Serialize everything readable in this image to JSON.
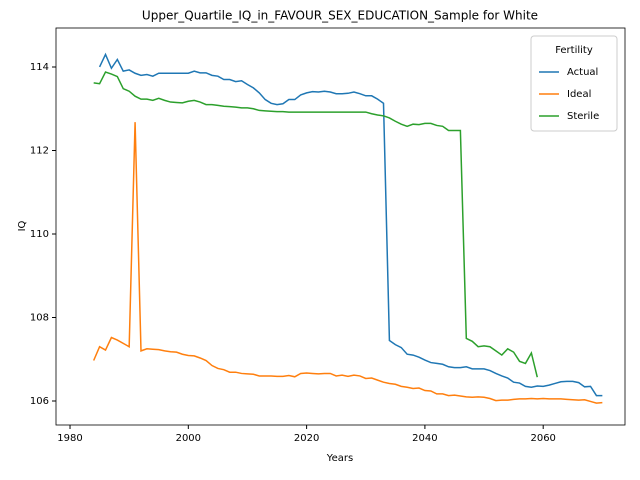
{
  "chart_data": {
    "type": "line",
    "title": "Upper_Quartile_IQ_in_FAVOUR_SEX_EDUCATION_Sample for White",
    "xlabel": "Years",
    "ylabel": "IQ",
    "legend_title": "Fertility",
    "legend": "upper right",
    "x": [
      1984,
      1985,
      1986,
      1987,
      1988,
      1989,
      1990,
      1991,
      1992,
      1993,
      1994,
      1995,
      1996,
      1997,
      1998,
      1999,
      2000,
      2001,
      2002,
      2003,
      2004,
      2005,
      2006,
      2007,
      2008,
      2009,
      2010,
      2011,
      2012,
      2013,
      2014,
      2015,
      2016,
      2017,
      2018,
      2019,
      2020,
      2021,
      2022,
      2023,
      2024,
      2025,
      2026,
      2027,
      2028,
      2029,
      2030,
      2031,
      2032,
      2033,
      2034,
      2035,
      2036,
      2037,
      2038,
      2039,
      2040,
      2041,
      2042,
      2043,
      2044,
      2045,
      2046,
      2047,
      2048,
      2049,
      2050,
      2051,
      2052,
      2053,
      2054,
      2055,
      2056,
      2057,
      2058,
      2059,
      2060,
      2061,
      2062,
      2063,
      2064,
      2065,
      2066,
      2067,
      2068,
      2069,
      2070
    ],
    "series": [
      {
        "name": "Actual",
        "color": "#1f77b4",
        "values": [
          null,
          114.0,
          114.3,
          113.97,
          114.18,
          113.9,
          113.93,
          113.85,
          113.8,
          113.82,
          113.78,
          113.85,
          113.85,
          113.85,
          113.85,
          113.85,
          113.85,
          113.9,
          113.86,
          113.86,
          113.8,
          113.78,
          113.7,
          113.7,
          113.65,
          113.67,
          113.58,
          113.5,
          113.38,
          113.22,
          113.13,
          113.1,
          113.12,
          113.22,
          113.22,
          113.33,
          113.38,
          113.41,
          113.4,
          113.42,
          113.4,
          113.36,
          113.36,
          113.37,
          113.4,
          113.36,
          113.31,
          113.31,
          113.23,
          113.13,
          107.45,
          107.35,
          107.28,
          107.12,
          107.1,
          107.05,
          106.98,
          106.92,
          106.9,
          106.88,
          106.82,
          106.8,
          106.8,
          106.82,
          106.77,
          106.77,
          106.77,
          106.73,
          106.66,
          106.6,
          106.55,
          106.45,
          106.43,
          106.35,
          106.33,
          106.36,
          106.35,
          106.38,
          106.42,
          106.46,
          106.47,
          106.47,
          106.44,
          106.34,
          106.35,
          106.13,
          106.13
        ]
      },
      {
        "name": "Ideal",
        "color": "#ff7f0e",
        "values": [
          106.97,
          107.3,
          107.22,
          107.52,
          107.46,
          107.38,
          107.3,
          112.68,
          107.2,
          107.25,
          107.24,
          107.23,
          107.2,
          107.18,
          107.17,
          107.12,
          107.09,
          107.08,
          107.03,
          106.97,
          106.85,
          106.78,
          106.75,
          106.69,
          106.69,
          106.66,
          106.65,
          106.64,
          106.6,
          106.6,
          106.6,
          106.59,
          106.59,
          106.61,
          106.58,
          106.66,
          106.67,
          106.66,
          106.65,
          106.66,
          106.66,
          106.6,
          106.62,
          106.59,
          106.62,
          106.6,
          106.54,
          106.55,
          106.5,
          106.45,
          106.42,
          106.4,
          106.35,
          106.33,
          106.3,
          106.31,
          106.25,
          106.24,
          106.17,
          106.17,
          106.13,
          106.14,
          106.12,
          106.1,
          106.09,
          106.1,
          106.09,
          106.06,
          106.01,
          106.02,
          106.02,
          106.04,
          106.05,
          106.05,
          106.06,
          106.05,
          106.06,
          106.05,
          106.05,
          106.05,
          106.04,
          106.03,
          106.02,
          106.03,
          105.99,
          105.95,
          105.96
        ]
      },
      {
        "name": "Sterile",
        "color": "#2ca02c",
        "values": [
          113.62,
          113.6,
          113.88,
          113.83,
          113.77,
          113.48,
          113.42,
          113.3,
          113.23,
          113.23,
          113.2,
          113.25,
          113.2,
          113.16,
          113.15,
          113.14,
          113.18,
          113.2,
          113.16,
          113.1,
          113.1,
          113.08,
          113.06,
          113.05,
          113.04,
          113.02,
          113.02,
          113.0,
          112.96,
          112.95,
          112.94,
          112.93,
          112.93,
          112.92,
          112.92,
          112.92,
          112.92,
          112.92,
          112.92,
          112.92,
          112.92,
          112.92,
          112.92,
          112.92,
          112.92,
          112.92,
          112.92,
          112.88,
          112.85,
          112.83,
          112.78,
          112.7,
          112.63,
          112.58,
          112.63,
          112.62,
          112.65,
          112.65,
          112.6,
          112.58,
          112.48,
          112.48,
          112.48,
          107.5,
          107.43,
          107.3,
          107.32,
          107.3,
          107.2,
          107.1,
          107.25,
          107.17,
          106.95,
          106.9,
          107.15,
          106.57,
          null,
          null,
          null,
          null,
          null,
          null,
          null,
          null,
          null,
          null,
          null
        ]
      }
    ],
    "xlim": [
      1977.63,
      2073.83
    ],
    "xticks": [
      1980,
      2000,
      2020,
      2040,
      2060
    ],
    "ylim": [
      105.425,
      114.934
    ],
    "yticks": [
      106,
      108,
      110,
      112,
      114
    ]
  }
}
